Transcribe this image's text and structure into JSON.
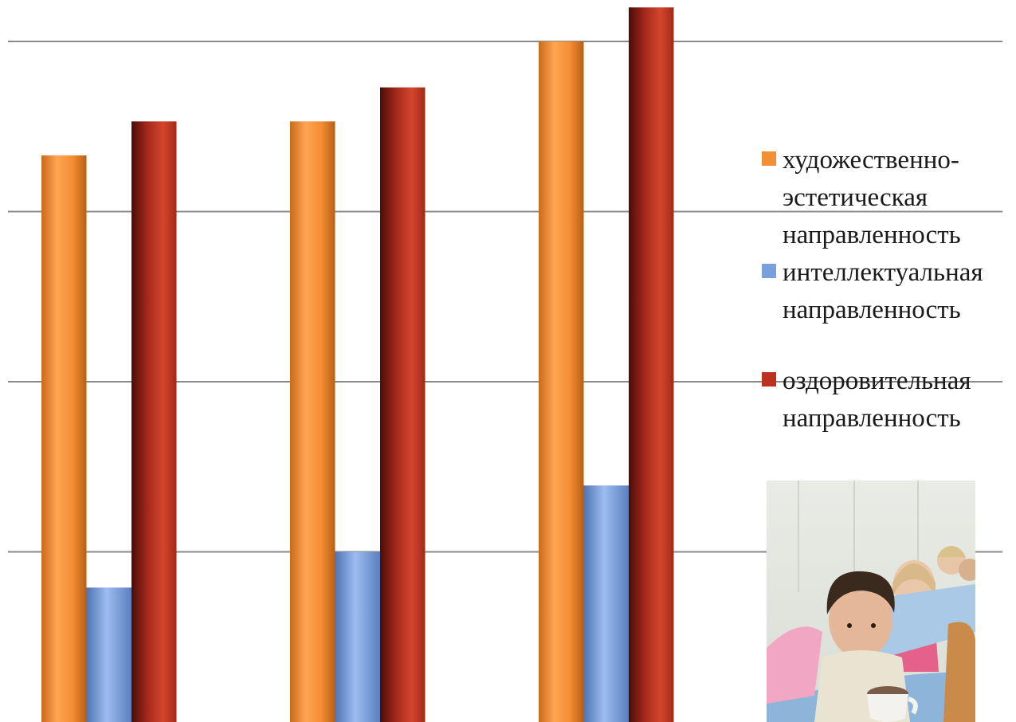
{
  "chart_data": {
    "type": "bar",
    "categories": [
      "",
      "",
      ""
    ],
    "series": [
      {
        "name": "художественно-эстетическая направленность",
        "color": "#f39035",
        "values": [
          3.33,
          3.53,
          4.0
        ]
      },
      {
        "name": "интеллектуальная направленность",
        "color": "#7aa0dc",
        "values": [
          0.79,
          1.0,
          1.39
        ]
      },
      {
        "name": "оздоровительная направленность",
        "color": "#bd3120",
        "values": [
          3.53,
          3.73,
          4.2
        ]
      }
    ],
    "ylim": [
      0,
      4.2
    ],
    "grid": true,
    "legend_position": "right"
  },
  "legend": {
    "items": [
      {
        "label_lines": [
          "художественно-",
          "эстетическая",
          "направленность"
        ],
        "color": "#f39035"
      },
      {
        "label_lines": [
          "интеллектуальная",
          "направленность"
        ],
        "color": "#7aa0dc"
      },
      {
        "label_lines": [
          "оздоровительная",
          "направленность"
        ],
        "color": "#bd3120"
      }
    ]
  },
  "photo": {
    "subject": "children at a table with cups"
  }
}
